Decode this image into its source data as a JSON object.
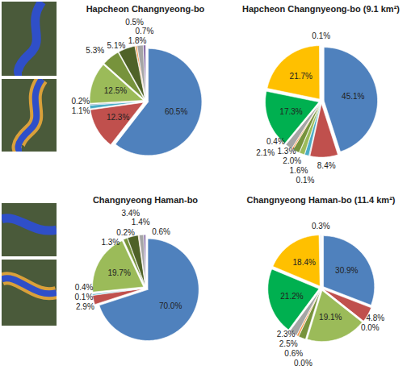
{
  "chart_data": [
    {
      "type": "pie",
      "title": "Hapcheon Changnyeong-bo",
      "values": [
        60.5,
        12.3,
        1.1,
        0.2,
        12.5,
        5.3,
        5.1,
        0.5,
        1.8,
        0.7
      ],
      "value_labels": [
        "60.5%",
        "12.3%",
        "1.1%",
        "0.2%",
        "12.5%",
        "5.3%",
        "5.1%",
        "0.5%",
        "1.8%",
        "0.7%"
      ],
      "colors": [
        "#4f81bd",
        "#c0504d",
        "#4bacc6",
        "#1f497d",
        "#9bbb59",
        "#77933c",
        "#4f6228",
        "#f79646",
        "#a5a5a5",
        "#8064a2"
      ],
      "data_labels": true
    },
    {
      "type": "pie",
      "title": "Hapcheon Changnyeong-bo (9.1 km²)",
      "values": [
        45.1,
        8.4,
        0.1,
        1.3,
        1.6,
        2.0,
        0.4,
        2.1,
        17.3,
        21.7,
        0.1
      ],
      "value_labels": [
        "45.1%",
        "8.4%",
        "0.1%",
        "1.3%",
        "1.6%",
        "2.0%",
        "0.4%",
        "2.1%",
        "17.3%",
        "21.7%",
        "0.1%"
      ],
      "colors": [
        "#4f81bd",
        "#c0504d",
        "#1f497d",
        "#4bacc6",
        "#9bbb59",
        "#77933c",
        "#f79646",
        "#a5a5a5",
        "#00b050",
        "#ffc000",
        "#dbe5f1"
      ],
      "data_labels": true
    },
    {
      "type": "pie",
      "title": "Changnyeong Haman-bo",
      "values": [
        70.0,
        2.9,
        0.4,
        0.1,
        19.7,
        1.3,
        3.4,
        0.2,
        1.4,
        0.6
      ],
      "value_labels": [
        "70.0%",
        "2.9%",
        "0.4%",
        "0.1%",
        "19.7%",
        "1.3%",
        "3.4%",
        "0.2%",
        "1.4%",
        "0.6%"
      ],
      "colors": [
        "#4f81bd",
        "#c0504d",
        "#4bacc6",
        "#1f497d",
        "#9bbb59",
        "#77933c",
        "#4f6228",
        "#f79646",
        "#a5a5a5",
        "#8064a2"
      ],
      "data_labels": true
    },
    {
      "type": "pie",
      "title": "Changnyeong Haman-bo (11.4 km²)",
      "values": [
        30.9,
        4.8,
        0.0,
        19.1,
        0.0,
        2.3,
        0.6,
        2.5,
        21.2,
        18.4,
        0.3
      ],
      "value_labels": [
        "30.9%",
        "4.8%",
        "0.0%",
        "19.1%",
        "0.0%",
        "2.3%",
        "0.6%",
        "2.5%",
        "21.2%",
        "18.4%",
        "0.3%"
      ],
      "colors": [
        "#4f81bd",
        "#c0504d",
        "#1f497d",
        "#9bbb59",
        "#4bacc6",
        "#77933c",
        "#f79646",
        "#a5a5a5",
        "#00b050",
        "#ffc000",
        "#dbe5f1"
      ],
      "data_labels": true
    }
  ]
}
